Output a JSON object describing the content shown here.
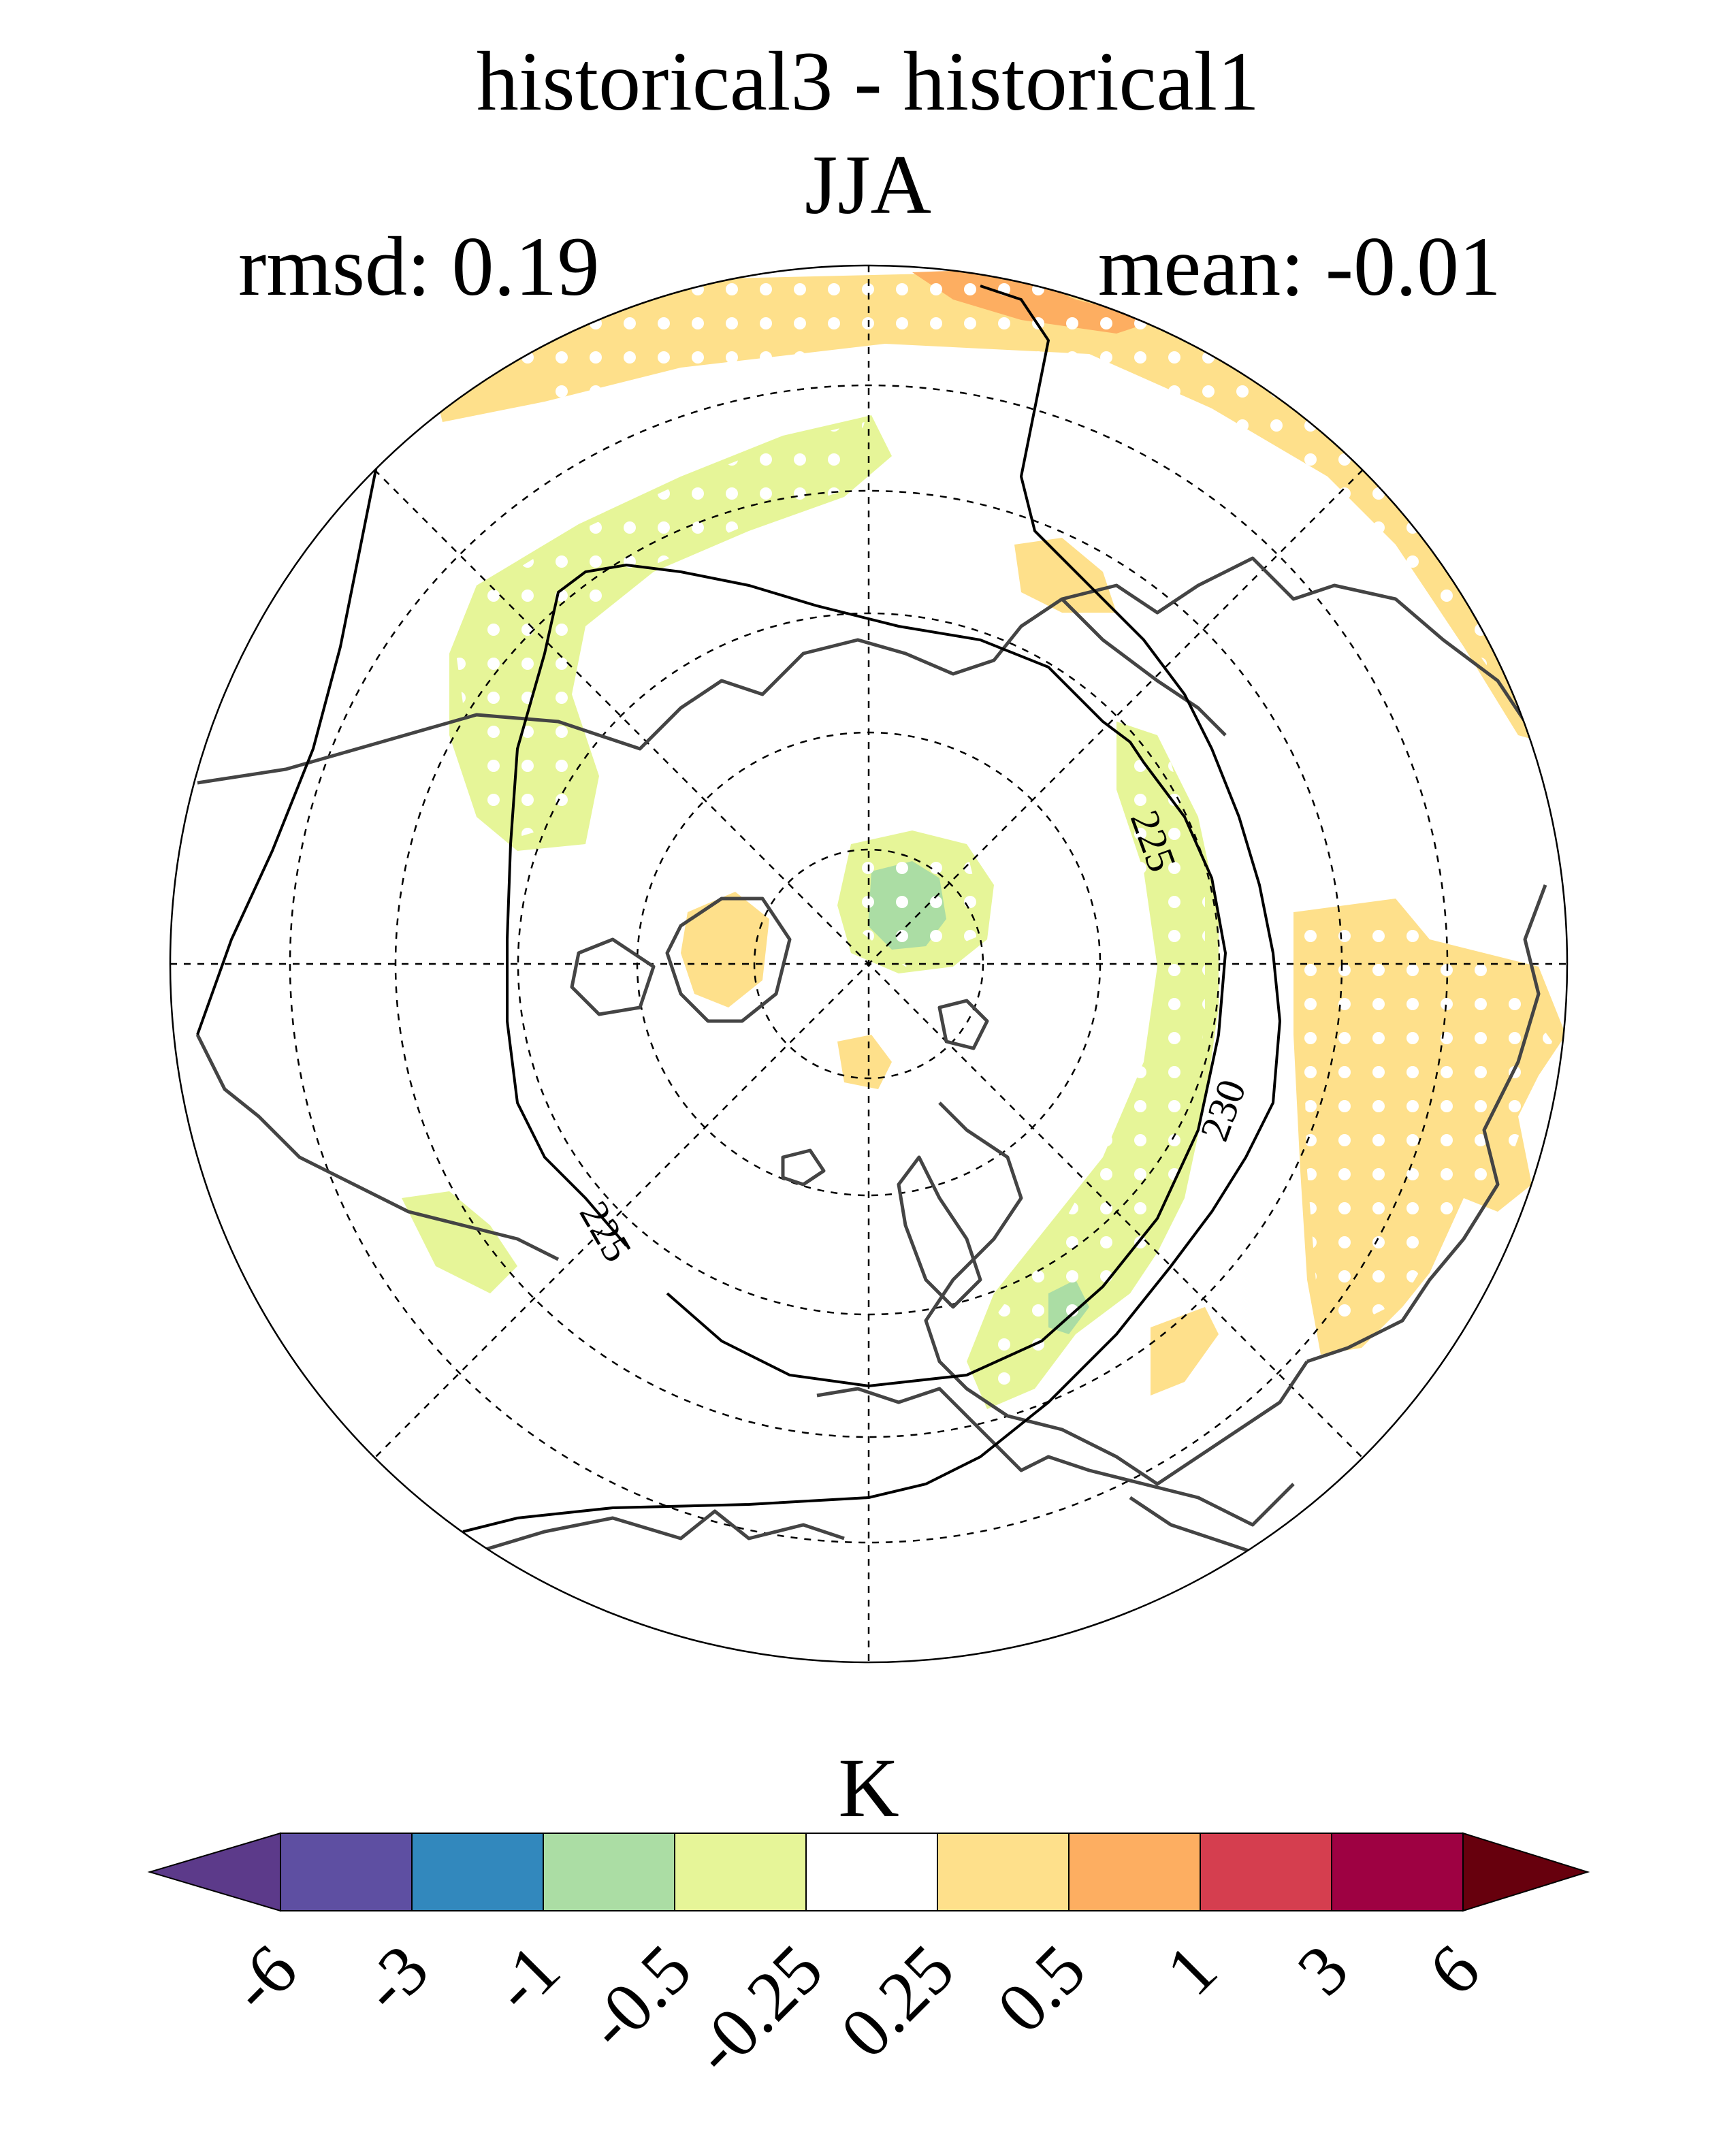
{
  "title": "historical3 - historical1",
  "season": "JJA",
  "stats": {
    "rmsd": "rmsd: 0.19",
    "mean": "mean: -0.01"
  },
  "colorbar": {
    "unit": "K",
    "levels": [
      "-6",
      "-3",
      "-1",
      "-0.5",
      "-0.25",
      "0.25",
      "0.5",
      "1",
      "3",
      "6"
    ],
    "colors": [
      "#5c3a8a",
      "#5e4fa2",
      "#3288bd",
      "#abdda4",
      "#e6f598",
      "#ffffff",
      "#fee08b",
      "#fdae61",
      "#d53e4f",
      "#9e0142",
      "#67000d"
    ]
  },
  "contours": [
    "225",
    "225",
    "230"
  ],
  "projection": "north-polar-stereographic"
}
